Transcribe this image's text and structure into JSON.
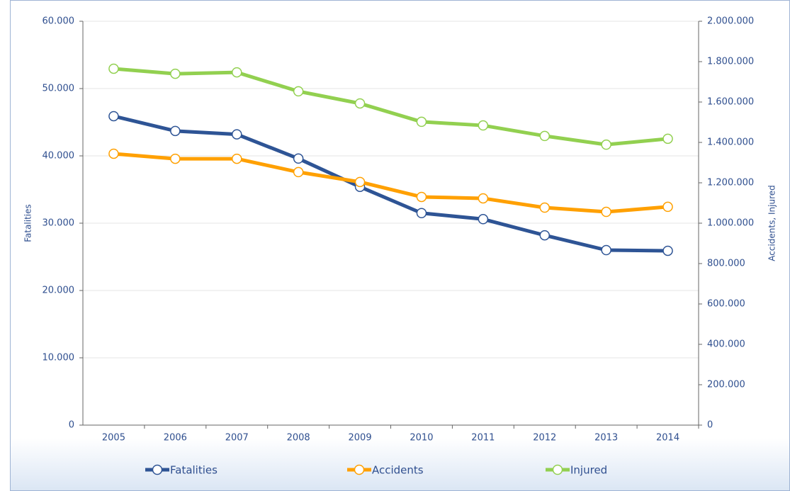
{
  "chart_data": {
    "type": "line",
    "y_label": "Fatalities",
    "y2_label": "Accidents, Injured",
    "categories": [
      "2005",
      "2006",
      "2007",
      "2008",
      "2009",
      "2010",
      "2011",
      "2012",
      "2013",
      "2014"
    ],
    "series": [
      {
        "name": "Fatalities",
        "color": "#2e5495",
        "values": [
          45900,
          43700,
          43200,
          39600,
          35400,
          31500,
          30600,
          28200,
          26000,
          25900
        ]
      },
      {
        "name": "Accidents",
        "color": "#ffa000",
        "axis": "y2",
        "values": [
          1344000,
          1319000,
          1319000,
          1253000,
          1204000,
          1130000,
          1123000,
          1077000,
          1056000,
          1081000
        ]
      },
      {
        "name": "Injured",
        "color": "#92d050",
        "axis": "y2",
        "values": [
          1765000,
          1740000,
          1747000,
          1653000,
          1593000,
          1502000,
          1484000,
          1432000,
          1389000,
          1418000
        ]
      }
    ],
    "ylim": [
      0,
      60000
    ],
    "yticks": [
      0,
      {
        "value": 10000,
        "label": "10.000"
      },
      {
        "value": 20000,
        "label": "20.000"
      },
      {
        "value": 30000,
        "label": "30.000"
      },
      {
        "value": 40000,
        "label": "40.000"
      },
      {
        "value": 50000,
        "label": "50.000"
      },
      {
        "value": 60000,
        "label": "60.000"
      }
    ],
    "y2lim": [
      0,
      2000000
    ],
    "y2ticks": [
      0,
      {
        "value": 200000,
        "label": "200.000"
      },
      {
        "value": 400000,
        "label": "400.000"
      },
      {
        "value": 600000,
        "label": "600.000"
      },
      {
        "value": 800000,
        "label": "800.000"
      },
      {
        "value": 1000000,
        "label": "1.000.000"
      },
      {
        "value": 1200000,
        "label": "1.200.000"
      },
      {
        "value": 1400000,
        "label": "1.400.000"
      },
      {
        "value": 1600000,
        "label": "1.600.000"
      },
      {
        "value": 1800000,
        "label": "1.800.000"
      },
      {
        "value": 2000000,
        "label": "2.000.000"
      }
    ],
    "grid": true
  }
}
